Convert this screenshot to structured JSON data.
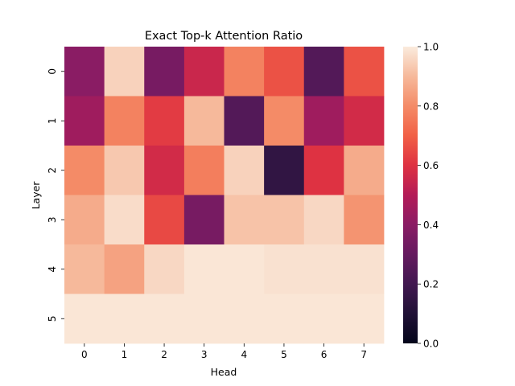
{
  "chart_data": {
    "type": "heatmap",
    "title": "Exact Top-k Attention Ratio",
    "xlabel": "Head",
    "ylabel": "Layer",
    "x": [
      "0",
      "1",
      "2",
      "3",
      "4",
      "5",
      "6",
      "7"
    ],
    "y": [
      "0",
      "1",
      "2",
      "3",
      "4",
      "5"
    ],
    "values": [
      [
        0.4,
        0.95,
        0.35,
        0.55,
        0.78,
        0.67,
        0.25,
        0.67
      ],
      [
        0.45,
        0.78,
        0.62,
        0.9,
        0.25,
        0.8,
        0.45,
        0.57
      ],
      [
        0.8,
        0.93,
        0.57,
        0.77,
        0.95,
        0.15,
        0.6,
        0.87
      ],
      [
        0.87,
        0.97,
        0.65,
        0.35,
        0.92,
        0.92,
        0.96,
        0.82
      ],
      [
        0.9,
        0.85,
        0.96,
        0.99,
        0.99,
        0.98,
        0.98,
        0.98
      ],
      [
        0.99,
        0.99,
        0.99,
        0.99,
        0.99,
        0.99,
        0.99,
        0.99
      ]
    ],
    "vmin": 0.0,
    "vmax": 1.0,
    "colorbar": {
      "ticks": [
        0.0,
        0.2,
        0.4,
        0.6,
        0.8,
        1.0
      ],
      "tick_labels": [
        "0.0",
        "0.2",
        "0.4",
        "0.6",
        "0.8",
        "1.0"
      ]
    },
    "colormap": "rocket",
    "grid": false
  }
}
